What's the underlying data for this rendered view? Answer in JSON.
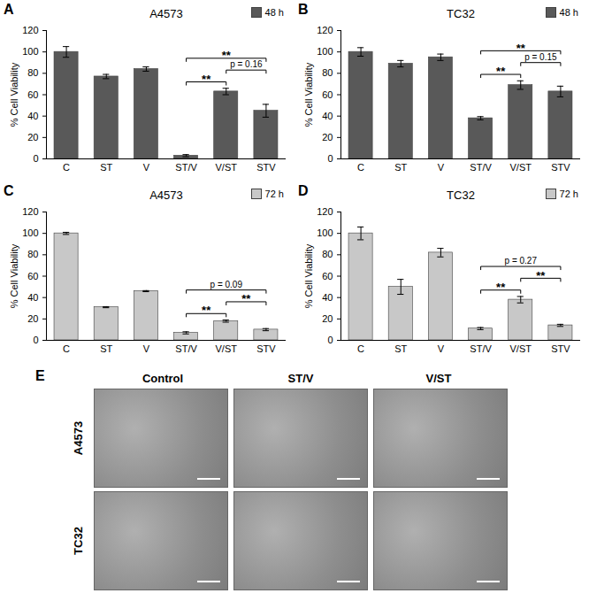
{
  "chart_data": [
    {
      "panel": "A",
      "type": "bar",
      "title": "A4573",
      "y_label": "% Cell Viability",
      "legend": "top-right",
      "categories": [
        "C",
        "ST",
        "V",
        "ST/V",
        "V/ST",
        "STV"
      ],
      "series": [
        {
          "name": "48 h",
          "color": "#595959",
          "values": [
            100,
            77,
            84,
            3,
            63,
            45
          ],
          "errors": [
            5,
            2,
            2,
            1,
            3,
            6
          ]
        }
      ],
      "ylim": [
        0,
        120
      ],
      "yticks": [
        0,
        20,
        40,
        60,
        80,
        100,
        120
      ],
      "comparisons": [
        {
          "from": "ST/V",
          "to": "V/ST",
          "label": "**"
        },
        {
          "from": "V/ST",
          "to": "STV",
          "label": "p = 0.16"
        },
        {
          "from": "ST/V",
          "to": "STV",
          "label": "**"
        }
      ]
    },
    {
      "panel": "B",
      "type": "bar",
      "title": "TC32",
      "y_label": "% Cell Viability",
      "legend": "top-right",
      "categories": [
        "C",
        "ST",
        "V",
        "ST/V",
        "V/ST",
        "STV"
      ],
      "series": [
        {
          "name": "48 h",
          "color": "#595959",
          "values": [
            100,
            89,
            95,
            38,
            69,
            63
          ],
          "errors": [
            4,
            3,
            3,
            1.5,
            4,
            5
          ]
        }
      ],
      "ylim": [
        0,
        120
      ],
      "yticks": [
        0,
        20,
        40,
        60,
        80,
        100,
        120
      ],
      "comparisons": [
        {
          "from": "ST/V",
          "to": "V/ST",
          "label": "**"
        },
        {
          "from": "V/ST",
          "to": "STV",
          "label": "p = 0.15"
        },
        {
          "from": "ST/V",
          "to": "STV",
          "label": "**"
        }
      ]
    },
    {
      "panel": "C",
      "type": "bar",
      "title": "A4573",
      "y_label": "% Cell Viability",
      "legend": "top-right",
      "categories": [
        "C",
        "ST",
        "V",
        "ST/V",
        "V/ST",
        "STV"
      ],
      "series": [
        {
          "name": "72 h",
          "color": "#c8c8c8",
          "values": [
            100,
            31,
            46,
            7,
            18,
            10
          ],
          "errors": [
            1,
            0.5,
            0.5,
            1,
            1,
            1
          ]
        }
      ],
      "ylim": [
        0,
        120
      ],
      "yticks": [
        0,
        20,
        40,
        60,
        80,
        100,
        120
      ],
      "comparisons": [
        {
          "from": "ST/V",
          "to": "V/ST",
          "label": "**"
        },
        {
          "from": "V/ST",
          "to": "STV",
          "label": "**"
        },
        {
          "from": "ST/V",
          "to": "STV",
          "label": "p = 0.09"
        }
      ]
    },
    {
      "panel": "D",
      "type": "bar",
      "title": "TC32",
      "y_label": "% Cell Viability",
      "legend": "top-right",
      "categories": [
        "C",
        "ST",
        "V",
        "ST/V",
        "V/ST",
        "STV"
      ],
      "series": [
        {
          "name": "72 h",
          "color": "#c8c8c8",
          "values": [
            100,
            50,
            82,
            11,
            38,
            14
          ],
          "errors": [
            6,
            7,
            4,
            1,
            3,
            1
          ]
        }
      ],
      "ylim": [
        0,
        120
      ],
      "yticks": [
        0,
        20,
        40,
        60,
        80,
        100,
        120
      ],
      "comparisons": [
        {
          "from": "ST/V",
          "to": "V/ST",
          "label": "**"
        },
        {
          "from": "V/ST",
          "to": "STV",
          "label": "**"
        },
        {
          "from": "ST/V",
          "to": "STV",
          "label": "p = 0.27"
        }
      ]
    }
  ],
  "panel_e": {
    "panel": "E",
    "columns": [
      "Control",
      "ST/V",
      "V/ST"
    ],
    "rows": [
      "A4573",
      "TC32"
    ]
  }
}
